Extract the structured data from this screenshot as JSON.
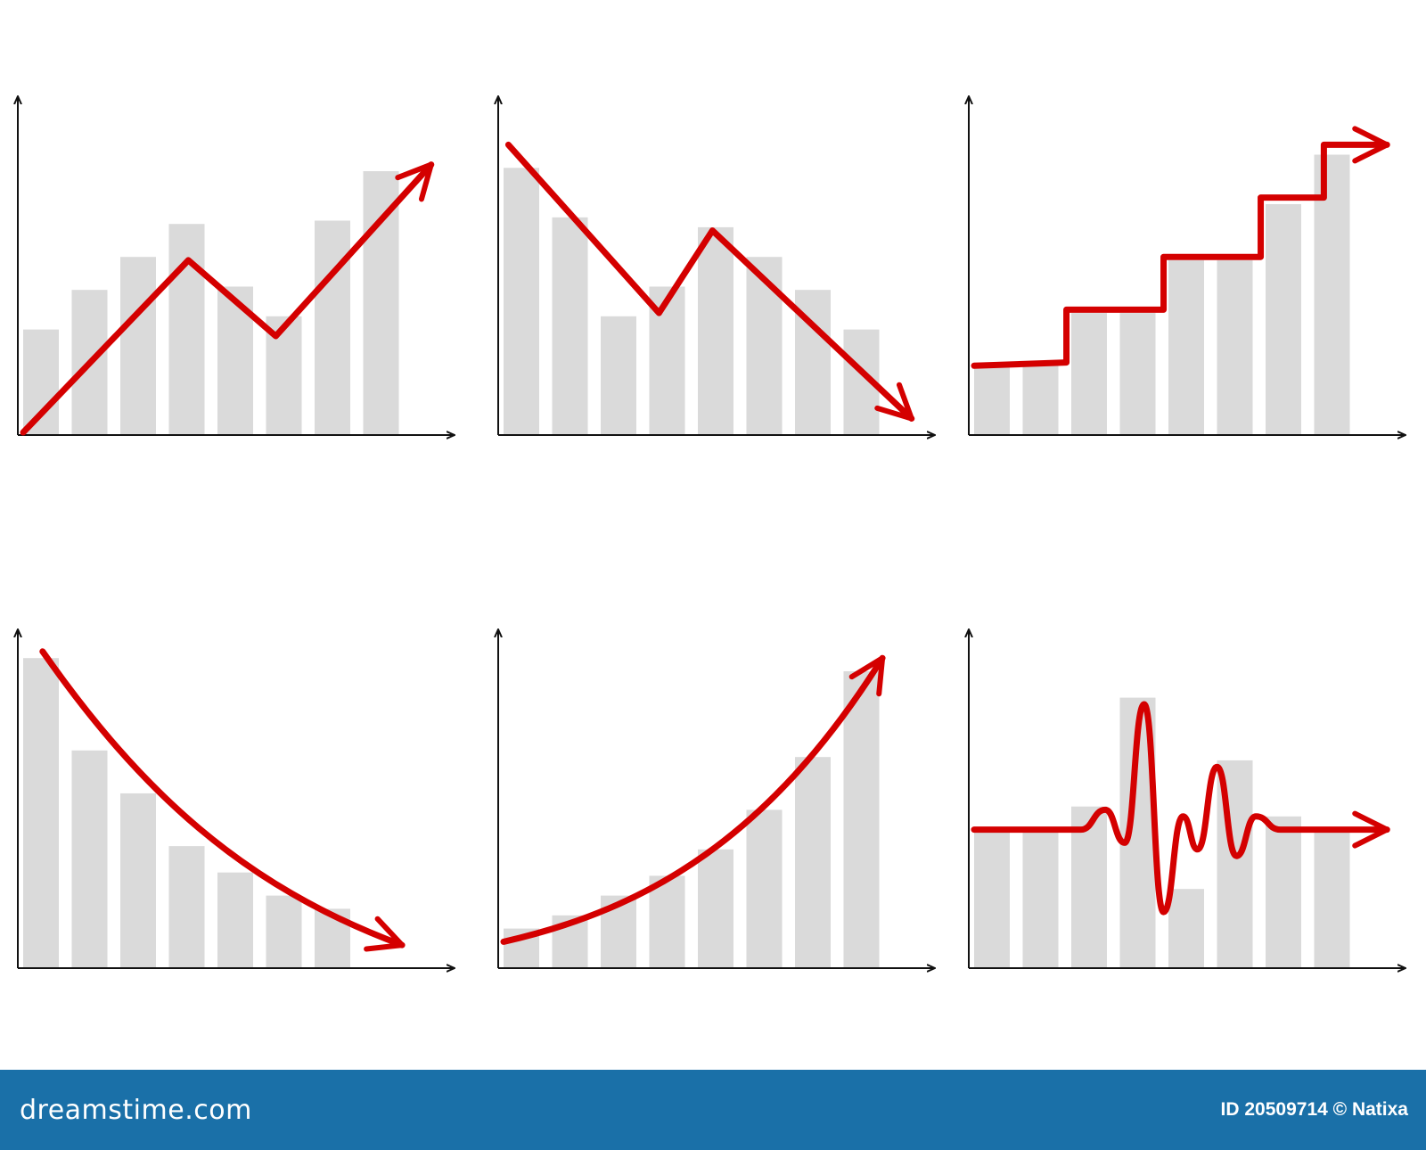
{
  "colors": {
    "bar": "#dadada",
    "trend": "#d40000",
    "axis": "#111111",
    "footer_bg": "#1a70a8",
    "footer_text": "#ffffff"
  },
  "icons": {
    "axis_arrow": "arrowhead-icon",
    "trend_arrow": "arrowhead-icon",
    "watermark": "spiral-watermark-icon"
  },
  "chart_data": [
    {
      "type": "bar",
      "trend": "zigzag-up",
      "values": [
        32,
        44,
        54,
        64,
        45,
        36,
        65,
        80
      ],
      "trend_points": [
        [
          0,
          0.8
        ],
        [
          3.4,
          53
        ],
        [
          5.2,
          30
        ],
        [
          8.4,
          82
        ]
      ],
      "xlabel": "",
      "ylabel": "",
      "ylim": [
        0,
        100
      ]
    },
    {
      "type": "bar",
      "trend": "zigzag-down",
      "values": [
        81,
        66,
        36,
        45,
        63,
        54,
        44,
        32
      ],
      "trend_points": [
        [
          0.1,
          88
        ],
        [
          3.2,
          37
        ],
        [
          4.3,
          62
        ],
        [
          8.4,
          5
        ]
      ],
      "xlabel": "",
      "ylabel": "",
      "ylim": [
        0,
        100
      ]
    },
    {
      "type": "bar",
      "trend": "staircase-up",
      "values": [
        22,
        22,
        37,
        37,
        53,
        53,
        70,
        85
      ],
      "trend_points": [
        [
          0,
          21
        ],
        [
          1.9,
          22
        ],
        [
          1.9,
          38
        ],
        [
          3.9,
          38
        ],
        [
          3.9,
          54
        ],
        [
          5.9,
          54
        ],
        [
          5.9,
          72
        ],
        [
          7.2,
          72
        ],
        [
          7.2,
          88
        ],
        [
          8.5,
          88
        ]
      ],
      "xlabel": "",
      "ylabel": "",
      "ylim": [
        0,
        100
      ]
    },
    {
      "type": "bar",
      "trend": "decay-curve",
      "values": [
        94,
        66,
        53,
        37,
        29,
        22,
        18
      ],
      "trend_points": [
        [
          0.4,
          96
        ],
        [
          2.4,
          54
        ],
        [
          4.5,
          25
        ],
        [
          7.8,
          7
        ]
      ],
      "xlabel": "",
      "ylabel": "",
      "ylim": [
        0,
        100
      ]
    },
    {
      "type": "bar",
      "trend": "growth-curve",
      "values": [
        12,
        16,
        22,
        28,
        36,
        48,
        64,
        90
      ],
      "trend_points": [
        [
          0,
          8
        ],
        [
          3,
          18
        ],
        [
          5.5,
          40
        ],
        [
          7.8,
          94
        ]
      ],
      "xlabel": "",
      "ylabel": "",
      "ylim": [
        0,
        100
      ]
    },
    {
      "type": "bar",
      "trend": "oscillation",
      "values": [
        42,
        42,
        49,
        82,
        24,
        63,
        46,
        42
      ],
      "trend_points": [
        [
          0,
          42
        ],
        [
          2.2,
          42
        ],
        [
          2.7,
          48
        ],
        [
          3.1,
          38
        ],
        [
          3.5,
          80
        ],
        [
          3.9,
          17
        ],
        [
          4.3,
          46
        ],
        [
          4.6,
          36
        ],
        [
          5.0,
          61
        ],
        [
          5.4,
          34
        ],
        [
          5.8,
          46
        ],
        [
          6.3,
          42
        ],
        [
          8.5,
          42
        ]
      ],
      "xlabel": "",
      "ylabel": "",
      "ylim": [
        0,
        100
      ]
    }
  ],
  "footer": {
    "logo": "dreamstime.com",
    "credit": "ID 20509714 © Natixa"
  }
}
